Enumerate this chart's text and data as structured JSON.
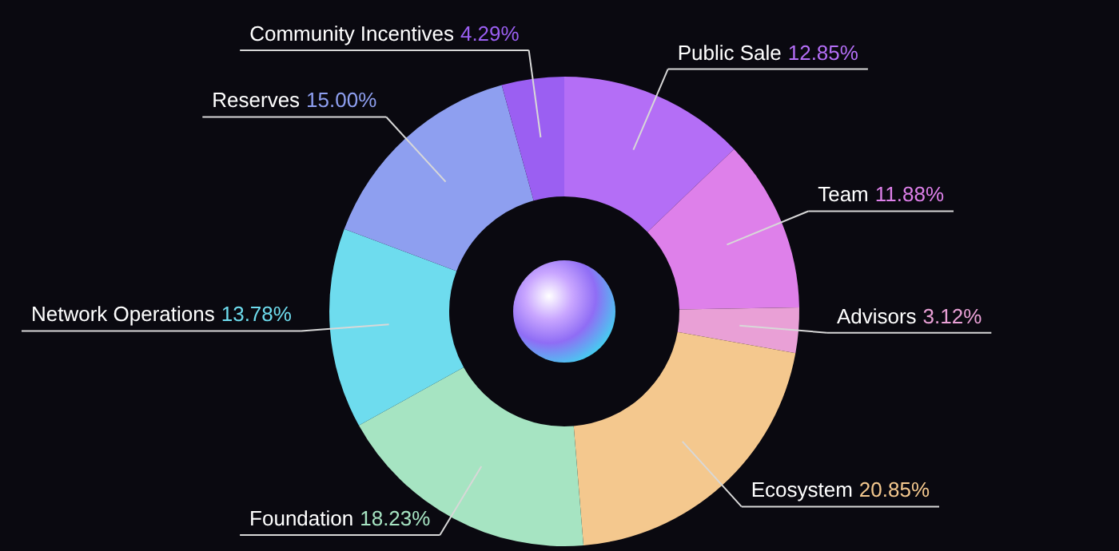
{
  "chart_data": {
    "type": "donut",
    "categories": [
      "Public Sale",
      "Team",
      "Advisors",
      "Ecosystem",
      "Foundation",
      "Network Operations",
      "Reserves",
      "Community Incentives"
    ],
    "values": [
      12.85,
      11.88,
      3.12,
      20.85,
      18.23,
      13.78,
      15.0,
      4.29
    ],
    "value_labels": [
      "12.85%",
      "11.88%",
      "3.12%",
      "20.85%",
      "18.23%",
      "13.78%",
      "15.00%",
      "4.29%"
    ],
    "colors": [
      "#b46ef6",
      "#de80ea",
      "#e9a0d6",
      "#f4c88e",
      "#a6e4c2",
      "#6edcee",
      "#8e9ff0",
      "#9b5ff2"
    ]
  }
}
